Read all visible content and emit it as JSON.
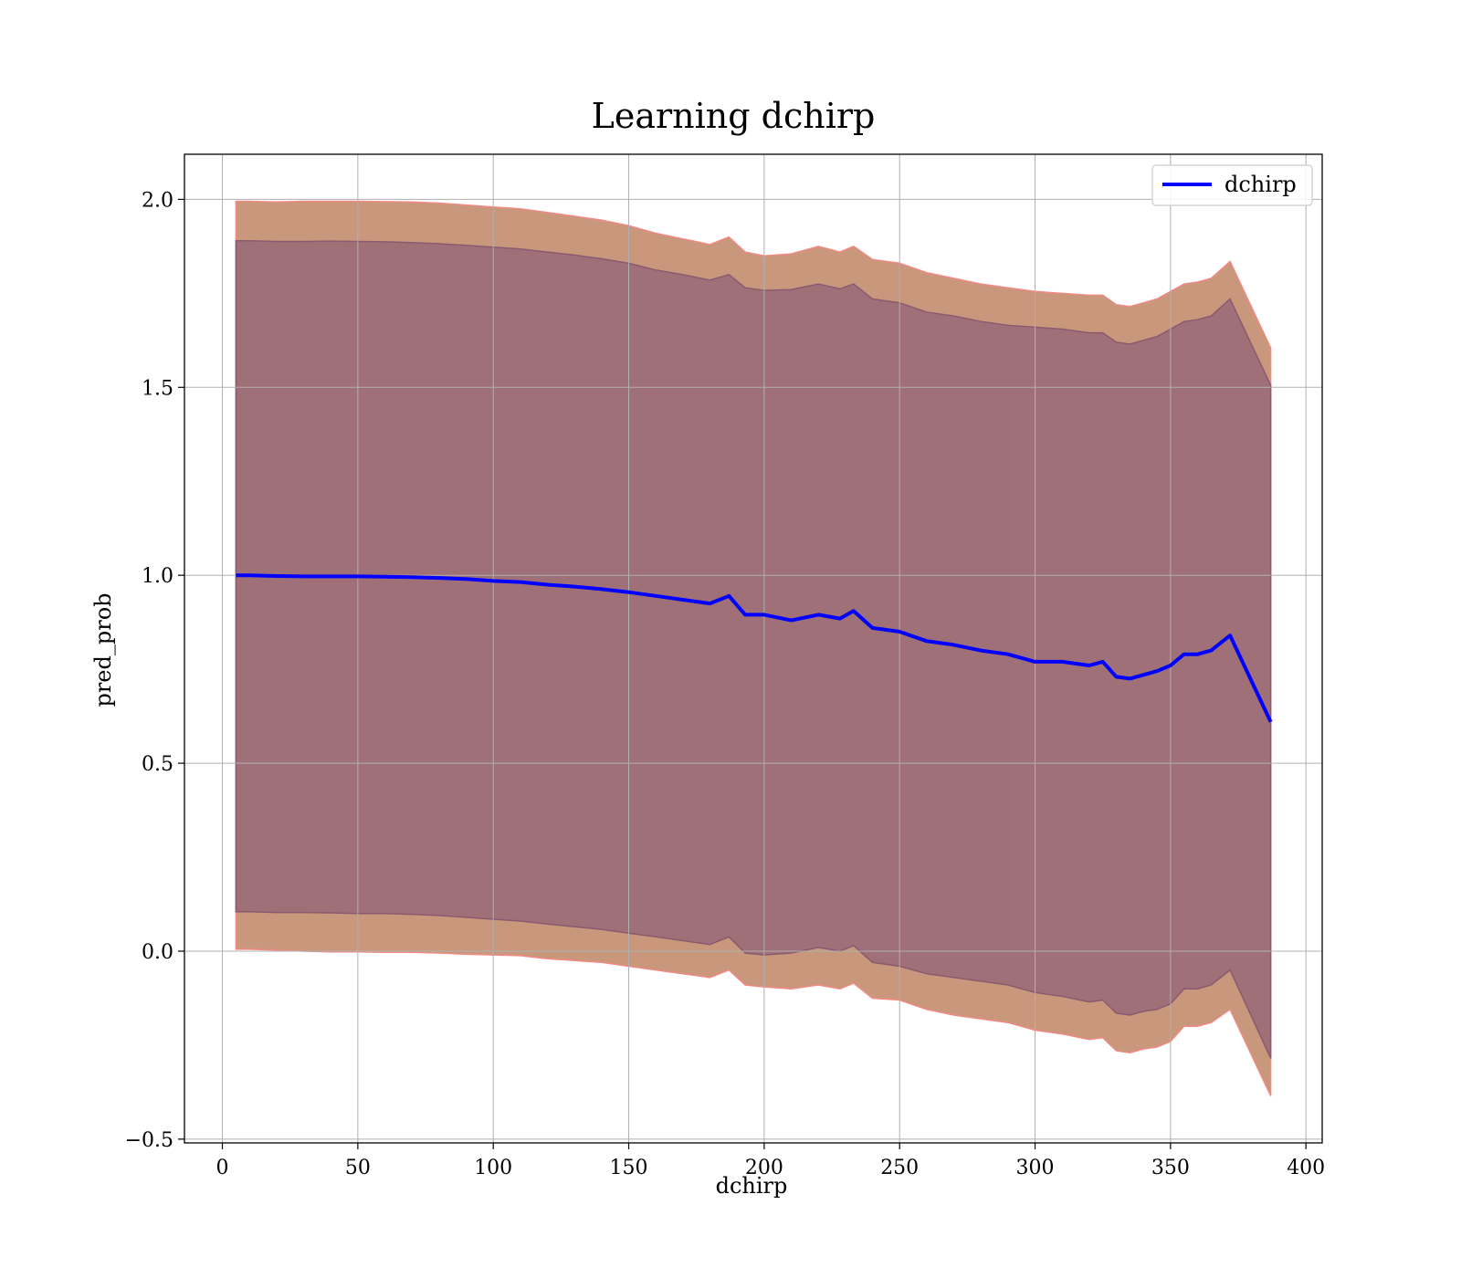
{
  "chart_data": {
    "type": "line",
    "title": "Learning dchirp",
    "xlabel": "dchirp",
    "ylabel": "pred_prob",
    "xlim": [
      -14,
      406
    ],
    "ylim": [
      -0.51,
      2.12
    ],
    "xticks": [
      0,
      50,
      100,
      150,
      200,
      250,
      300,
      350,
      400
    ],
    "xtick_labels": [
      "0",
      "50",
      "100",
      "150",
      "200",
      "250",
      "300",
      "350",
      "400"
    ],
    "yticks": [
      -0.5,
      0.0,
      0.5,
      1.0,
      1.5,
      2.0
    ],
    "ytick_labels": [
      "−0.5",
      "0.0",
      "0.5",
      "1.0",
      "1.5",
      "2.0"
    ],
    "grid": true,
    "legend_position": "top-right",
    "colors": {
      "line": "#0000ff",
      "outer_band": "#c8977c",
      "outer_band_edge": "#f08a84",
      "inner_band": "#a07078",
      "inner_band_edge": "#8a5a70",
      "grid": "#b0b0b0"
    },
    "series": [
      {
        "name": "dchirp",
        "x": [
          5,
          10,
          20,
          30,
          40,
          50,
          60,
          70,
          80,
          90,
          100,
          110,
          120,
          130,
          140,
          150,
          160,
          170,
          180,
          187,
          193,
          200,
          210,
          220,
          228,
          233,
          240,
          250,
          260,
          270,
          280,
          290,
          300,
          310,
          320,
          325,
          330,
          335,
          340,
          345,
          350,
          355,
          360,
          365,
          372,
          387
        ],
        "y": [
          1.0,
          1.0,
          0.998,
          0.997,
          0.997,
          0.997,
          0.996,
          0.995,
          0.993,
          0.99,
          0.985,
          0.982,
          0.975,
          0.97,
          0.963,
          0.955,
          0.945,
          0.935,
          0.925,
          0.945,
          0.895,
          0.895,
          0.88,
          0.895,
          0.885,
          0.905,
          0.86,
          0.85,
          0.825,
          0.815,
          0.8,
          0.79,
          0.77,
          0.77,
          0.76,
          0.77,
          0.73,
          0.725,
          0.735,
          0.745,
          0.76,
          0.79,
          0.79,
          0.8,
          0.84,
          0.61
        ]
      }
    ],
    "bands": [
      {
        "label": "outer",
        "x": [
          5,
          10,
          20,
          30,
          40,
          50,
          60,
          70,
          80,
          90,
          100,
          110,
          120,
          130,
          140,
          150,
          160,
          170,
          180,
          187,
          193,
          200,
          210,
          220,
          228,
          233,
          240,
          250,
          260,
          270,
          280,
          290,
          300,
          310,
          320,
          325,
          330,
          335,
          340,
          345,
          350,
          355,
          360,
          365,
          372,
          387
        ],
        "upper": [
          1.995,
          1.995,
          1.993,
          1.995,
          1.995,
          1.995,
          1.994,
          1.993,
          1.99,
          1.985,
          1.98,
          1.975,
          1.965,
          1.955,
          1.945,
          1.93,
          1.91,
          1.895,
          1.88,
          1.9,
          1.86,
          1.85,
          1.855,
          1.875,
          1.86,
          1.875,
          1.84,
          1.83,
          1.805,
          1.79,
          1.775,
          1.765,
          1.755,
          1.75,
          1.745,
          1.745,
          1.72,
          1.715,
          1.725,
          1.735,
          1.755,
          1.775,
          1.78,
          1.79,
          1.835,
          1.605
        ],
        "lower": [
          0.005,
          0.005,
          0.003,
          0.0,
          -0.002,
          -0.002,
          -0.003,
          -0.003,
          -0.005,
          -0.008,
          -0.01,
          -0.012,
          -0.02,
          -0.025,
          -0.03,
          -0.04,
          -0.05,
          -0.06,
          -0.07,
          -0.05,
          -0.09,
          -0.095,
          -0.1,
          -0.09,
          -0.1,
          -0.085,
          -0.125,
          -0.13,
          -0.155,
          -0.17,
          -0.18,
          -0.19,
          -0.21,
          -0.22,
          -0.235,
          -0.23,
          -0.265,
          -0.27,
          -0.26,
          -0.255,
          -0.24,
          -0.2,
          -0.2,
          -0.19,
          -0.155,
          -0.385
        ]
      },
      {
        "label": "inner",
        "x": [
          5,
          10,
          20,
          30,
          40,
          50,
          60,
          70,
          80,
          90,
          100,
          110,
          120,
          130,
          140,
          150,
          160,
          170,
          180,
          187,
          193,
          200,
          210,
          220,
          228,
          233,
          240,
          250,
          260,
          270,
          280,
          290,
          300,
          310,
          320,
          325,
          330,
          335,
          340,
          345,
          350,
          355,
          360,
          365,
          372,
          387
        ],
        "upper": [
          1.89,
          1.89,
          1.888,
          1.888,
          1.889,
          1.888,
          1.887,
          1.885,
          1.882,
          1.878,
          1.873,
          1.868,
          1.86,
          1.852,
          1.842,
          1.83,
          1.812,
          1.8,
          1.785,
          1.8,
          1.765,
          1.758,
          1.76,
          1.775,
          1.762,
          1.775,
          1.735,
          1.725,
          1.7,
          1.69,
          1.675,
          1.665,
          1.66,
          1.655,
          1.645,
          1.645,
          1.62,
          1.615,
          1.625,
          1.635,
          1.655,
          1.675,
          1.68,
          1.69,
          1.735,
          1.505
        ],
        "lower": [
          0.105,
          0.105,
          0.103,
          0.103,
          0.102,
          0.1,
          0.1,
          0.098,
          0.095,
          0.09,
          0.085,
          0.08,
          0.072,
          0.065,
          0.058,
          0.048,
          0.038,
          0.028,
          0.018,
          0.038,
          -0.005,
          -0.01,
          -0.005,
          0.01,
          0.0,
          0.015,
          -0.03,
          -0.04,
          -0.06,
          -0.07,
          -0.08,
          -0.09,
          -0.11,
          -0.12,
          -0.135,
          -0.13,
          -0.165,
          -0.17,
          -0.16,
          -0.155,
          -0.14,
          -0.1,
          -0.1,
          -0.09,
          -0.05,
          -0.285
        ]
      }
    ]
  }
}
